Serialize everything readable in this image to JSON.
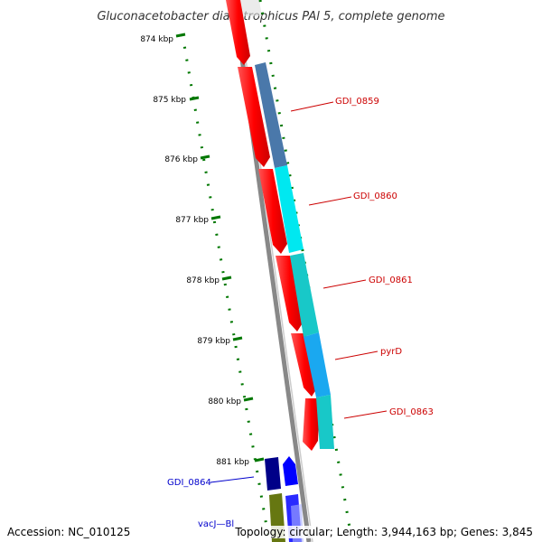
{
  "title": "Gluconacetobacter diazotrophicus PAl 5, complete genome",
  "footer": {
    "accession": "Accession: NC_010125",
    "topology": "Topology: circular; Length: 3,944,163 bp; Genes: 3,845"
  },
  "ruler": {
    "ticks": [
      "874 kbp",
      "875 kbp",
      "876 kbp",
      "877 kbp",
      "878 kbp",
      "879 kbp",
      "880 kbp",
      "881 kbp"
    ]
  },
  "colors": {
    "forward_cds": "#ff0000",
    "backbone": "#888888",
    "ruler": "#007700",
    "label_red": "#cc0000",
    "label_blue": "#0000cc"
  },
  "features": {
    "reverse_cds": [
      {
        "color": "#ff0000"
      },
      {
        "color": "#ff0000"
      },
      {
        "color": "#ff0000"
      },
      {
        "color": "#ff0000"
      },
      {
        "color": "#ff0000"
      },
      {
        "color": "#ff0000"
      }
    ],
    "forward_cds": [
      {
        "label": "GDI_0859",
        "color": "#4a78aa",
        "label_color": "#cc0000"
      },
      {
        "label": "GDI_0860",
        "color": "#00e8f0",
        "label_color": "#cc0000"
      },
      {
        "label": "GDI_0861",
        "color": "#18c8c8",
        "label_color": "#cc0000"
      },
      {
        "label": "pyrD",
        "color": "#1aa8f0",
        "label_color": "#cc0000"
      },
      {
        "label": "GDI_0863",
        "color": "#18c8c8",
        "label_color": "#cc0000"
      }
    ],
    "lower_genes": [
      {
        "label": "GDI_0864",
        "color": "#000088",
        "label_color": "#0000cc"
      },
      {
        "label": "vacJ",
        "color": "#667711",
        "label_color": "#0000cc"
      }
    ],
    "partial_label": "vacJ—Bl"
  }
}
